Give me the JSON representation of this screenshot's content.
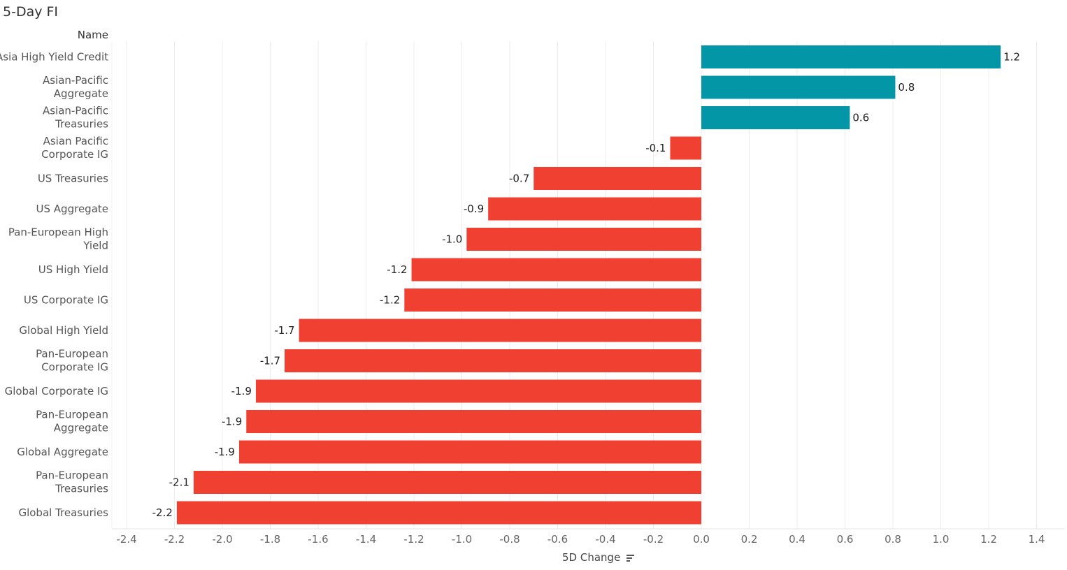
{
  "title": "5-Day FI",
  "chart_data": {
    "type": "bar",
    "orientation": "horizontal",
    "ylabel": "Name",
    "xlabel": "5D Change",
    "xlim": [
      -2.5,
      1.5
    ],
    "xticks": [
      -2.4,
      -2.2,
      -2.0,
      -1.8,
      -1.6,
      -1.4,
      -1.2,
      -1.0,
      -0.8,
      -0.6,
      -0.4,
      -0.2,
      0.0,
      0.2,
      0.4,
      0.6,
      0.8,
      1.0,
      1.2,
      1.4
    ],
    "xtick_labels": [
      "-2.4",
      "-2.2",
      "-2.0",
      "-1.8",
      "-1.6",
      "-1.4",
      "-1.2",
      "-1.0",
      "-0.8",
      "-0.6",
      "-0.4",
      "-0.2",
      "0.0",
      "0.2",
      "0.4",
      "0.6",
      "0.8",
      "1.0",
      "1.2",
      "1.4"
    ],
    "grid": true,
    "positive_color": "#0396A6",
    "negative_color": "#F04032",
    "categories": [
      [
        "Asia High Yield Credit"
      ],
      [
        "Asian-Pacific",
        "Aggregate"
      ],
      [
        "Asian-Pacific",
        "Treasuries"
      ],
      [
        "Asian Pacific",
        "Corporate IG"
      ],
      [
        "US Treasuries"
      ],
      [
        "US Aggregate"
      ],
      [
        "Pan-European High",
        "Yield"
      ],
      [
        "US High Yield"
      ],
      [
        "US Corporate IG"
      ],
      [
        "Global High Yield"
      ],
      [
        "Pan-European",
        "Corporate IG"
      ],
      [
        "Global Corporate IG"
      ],
      [
        "Pan-European",
        "Aggregate"
      ],
      [
        "Global Aggregate"
      ],
      [
        "Pan-European",
        "Treasuries"
      ],
      [
        "Global Treasuries"
      ]
    ],
    "values": [
      1.25,
      0.81,
      0.62,
      -0.13,
      -0.7,
      -0.89,
      -0.98,
      -1.21,
      -1.24,
      -1.68,
      -1.74,
      -1.86,
      -1.9,
      -1.93,
      -2.12,
      -2.19
    ],
    "data_labels": [
      "1.2",
      "0.8",
      "0.6",
      "-0.1",
      "-0.7",
      "-0.9",
      "-1.0",
      "-1.2",
      "-1.2",
      "-1.7",
      "-1.7",
      "-1.9",
      "-1.9",
      "-1.9",
      "-2.1",
      "-2.2"
    ],
    "sort_icon": "sort-descending-icon"
  }
}
